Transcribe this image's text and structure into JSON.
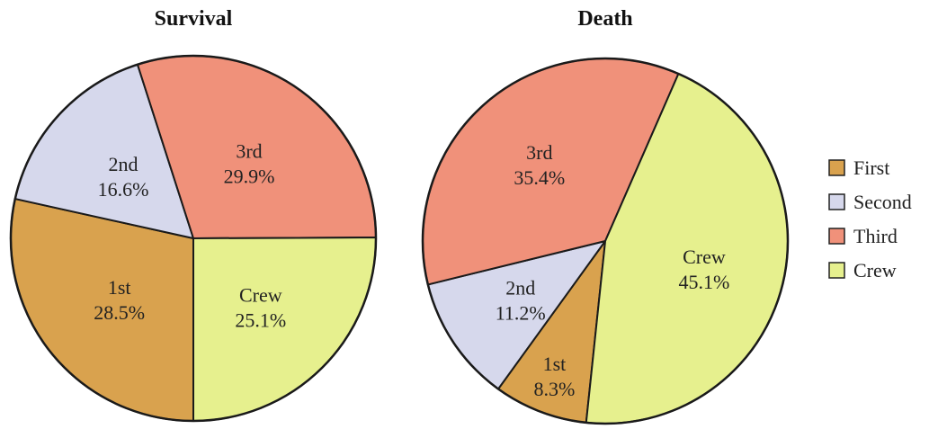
{
  "chart_data": [
    {
      "type": "pie",
      "title": "Survival",
      "categories": [
        "1st",
        "2nd",
        "3rd",
        "Crew"
      ],
      "values": [
        28.5,
        16.6,
        29.9,
        25.1
      ],
      "value_labels": [
        "28.5%",
        "16.6%",
        "29.9%",
        "25.1%"
      ]
    },
    {
      "type": "pie",
      "title": "Death",
      "categories": [
        "1st",
        "2nd",
        "3rd",
        "Crew"
      ],
      "values": [
        8.3,
        11.2,
        35.4,
        45.1
      ],
      "value_labels": [
        "8.3%",
        "11.2%",
        "35.4%",
        "45.1%"
      ]
    }
  ],
  "legend": {
    "placement": "right",
    "entries": [
      "First",
      "Second",
      "Third",
      "Crew"
    ]
  },
  "colors": {
    "First": "#d9a24e",
    "Second": "#d6d8ec",
    "Third": "#f0917a",
    "Crew": "#e6f08e",
    "outline": "#1a1a1a"
  }
}
